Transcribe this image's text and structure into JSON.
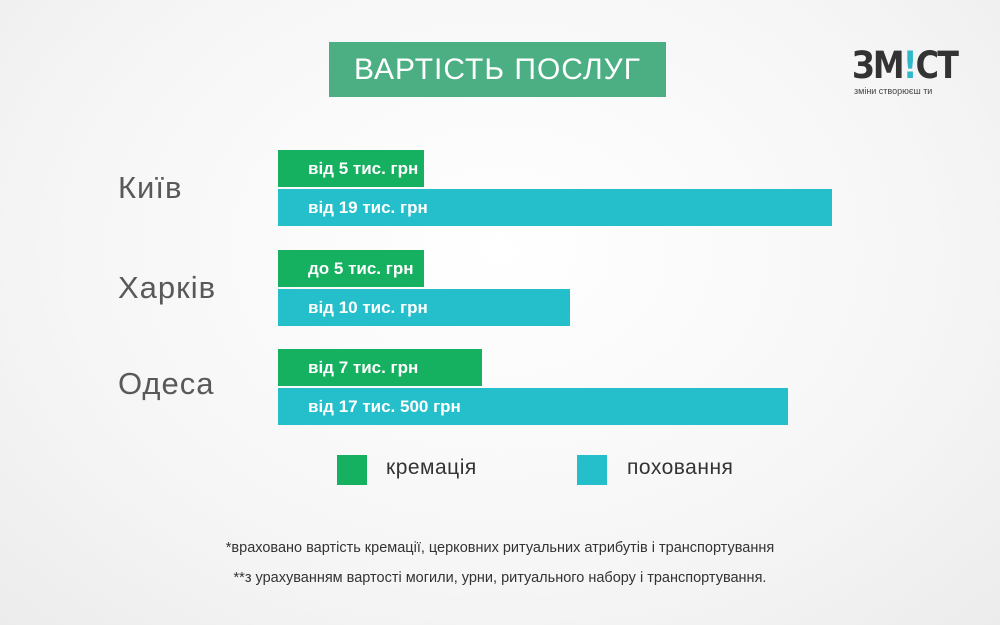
{
  "title": "ВАРТІСТЬ ПОСЛУГ",
  "logo": {
    "main_prefix": "ЗМ",
    "main_accent": "!",
    "main_suffix": "СТ",
    "tagline": "зміни створюєш ти"
  },
  "colors": {
    "cremation": "#16b160",
    "burial": "#25bfcc",
    "title_bg": "#4caf83"
  },
  "chart_data": {
    "type": "bar",
    "orientation": "horizontal",
    "categories": [
      "Київ",
      "Харків",
      "Одеса"
    ],
    "series": [
      {
        "name": "кремація",
        "values": [
          5000,
          5000,
          7000
        ],
        "labels": [
          "від 5 тис. грн",
          "до 5 тис. грн",
          "від 7 тис. грн"
        ]
      },
      {
        "name": "поховання",
        "values": [
          19000,
          10000,
          17500
        ],
        "labels": [
          "від 19 тис. грн",
          "від 10 тис. грн",
          "від 17 тис. 500 грн"
        ]
      }
    ],
    "unit": "грн",
    "legend": "bottom",
    "grid": false
  },
  "footnotes": [
    "*враховано вартість кремації, церковних ритуальних атрибутів і транспортування",
    "**з урахуванням вартості могили, урни, ритуального набору і транспортування."
  ]
}
